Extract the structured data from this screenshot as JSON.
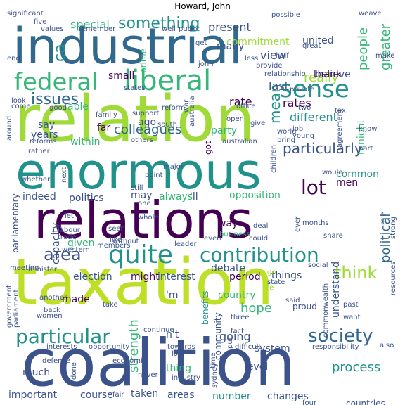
{
  "title": "Howard, John",
  "palette": {
    "purple": "#440154",
    "indigo": "#3b528b",
    "blue": "#31688e",
    "teal": "#21918c",
    "green": "#35b779",
    "lime": "#a0da39",
    "yellow": "#bddf26"
  },
  "words": [
    "industrial",
    "relation",
    "enormous",
    "relations",
    "taxation",
    "coalition",
    "federal",
    "liberal",
    "sense",
    "contribution",
    "quite",
    "lot",
    "particular",
    "society",
    "think",
    "something",
    "ca",
    "issues",
    "area",
    "people",
    "greater",
    "countries",
    "political",
    "strength",
    "process",
    "really",
    "mean",
    "colleagues",
    "particularly",
    "special",
    "commitment",
    "united",
    "present",
    "view",
    "last",
    "rates",
    "different",
    "rate",
    "party",
    "ago",
    "years",
    "far",
    "say",
    "within",
    "able",
    "small",
    "prime",
    "believe",
    "thank",
    "tonight",
    "common",
    "men",
    "indeed",
    "politics",
    "always",
    "opposition",
    "capacity",
    "given",
    "election",
    "made",
    "might",
    "interest",
    "period",
    "debate",
    "things",
    "country",
    "hope",
    "going",
    "understand",
    "system",
    "level",
    "thing",
    "taken",
    "areas",
    "course",
    "much",
    "important",
    "number",
    "changes",
    "parliamentary",
    "community",
    "benefits",
    "many",
    "may",
    "way",
    "'ll",
    "n't",
    "'m",
    "got",
    "still",
    "seen",
    "like",
    "whole",
    "business",
    "let",
    "labour",
    "trade",
    "members",
    "even",
    "could",
    "ever",
    "role",
    "share",
    "strong",
    "western",
    "leader",
    "without",
    "deal",
    "months",
    "social",
    "go",
    "meeting",
    "minister",
    "life",
    "state",
    "another",
    "take",
    "said",
    "proud",
    "past",
    "back",
    "women",
    "three",
    "want",
    "government",
    "parliament",
    "continue",
    "commonwealth",
    "resources",
    "towards",
    "fact",
    "put",
    "low",
    "difficult",
    "interests",
    "opportunity",
    "economic",
    "time",
    "defence",
    "done",
    "fair",
    "never",
    "industry",
    "sydney",
    "four",
    "also",
    "responsibility",
    "significant",
    "five",
    "values",
    "remember",
    "well",
    "public",
    "possible",
    "great",
    "weave",
    "end",
    "john",
    "less",
    "provide",
    "half",
    "make",
    "relationship",
    "private",
    "states",
    "reform",
    "war",
    "office",
    "two",
    "tax",
    "look",
    "come",
    "good",
    "family",
    "support",
    "south",
    "open",
    "give",
    "world",
    "job",
    "young",
    "bring",
    "know",
    "agreement",
    "reforms",
    "australian",
    "part",
    "rather",
    "others",
    "australia",
    "around",
    "whether",
    "next",
    "major",
    "point",
    "children",
    "would",
    "one",
    "get"
  ]
}
